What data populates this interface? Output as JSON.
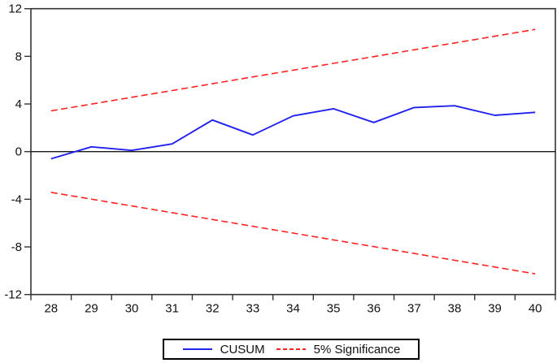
{
  "chart_data": {
    "type": "line",
    "title": "",
    "xlabel": "",
    "ylabel": "",
    "x": [
      28,
      29,
      30,
      31,
      32,
      33,
      34,
      35,
      36,
      37,
      38,
      39,
      40
    ],
    "series": [
      {
        "name": "CUSUM",
        "style": "solid",
        "color": "#2222ee",
        "values": [
          -0.6,
          0.4,
          0.1,
          0.65,
          2.65,
          1.4,
          3.0,
          3.6,
          2.45,
          3.7,
          3.85,
          3.05,
          3.3
        ]
      },
      {
        "name": "5% Significance (upper bound)",
        "style": "dashed",
        "color": "#ff2222",
        "values": [
          3.42,
          3.99,
          4.56,
          5.13,
          5.7,
          6.27,
          6.84,
          7.41,
          7.98,
          8.55,
          9.12,
          9.69,
          10.26
        ]
      },
      {
        "name": "5% Significance (lower bound)",
        "style": "dashed",
        "color": "#ff2222",
        "values": [
          -3.42,
          -3.99,
          -4.56,
          -5.13,
          -5.7,
          -6.27,
          -6.84,
          -7.41,
          -7.98,
          -8.55,
          -9.12,
          -9.69,
          -10.26
        ]
      }
    ],
    "xlim": [
      27.5,
      40.5
    ],
    "ylim": [
      -12,
      12
    ],
    "x_ticks": [
      28,
      29,
      30,
      31,
      32,
      33,
      34,
      35,
      36,
      37,
      38,
      39,
      40
    ],
    "x_tick_marks": [
      27.5,
      28.5,
      29.5,
      30.5,
      31.5,
      32.5,
      33.5,
      34.5,
      35.5,
      36.5,
      37.5,
      38.5,
      39.5,
      40.5
    ],
    "y_ticks": [
      -12,
      -8,
      -4,
      0,
      4,
      8,
      12
    ],
    "zero_line": true,
    "grid": false,
    "legend_position": "bottom-center"
  },
  "legend": {
    "items": [
      {
        "label": "CUSUM",
        "color": "#2222ee",
        "style": "solid"
      },
      {
        "label": "5% Significance",
        "color": "#ff2222",
        "style": "dashed"
      }
    ]
  },
  "colors": {
    "axis": "#333333",
    "zero_line": "#1a1a1a",
    "tick_text": "#111111",
    "background": "#ffffff"
  }
}
